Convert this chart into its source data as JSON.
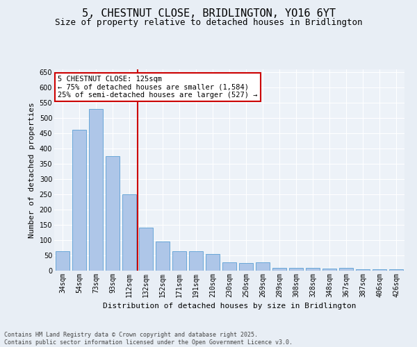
{
  "title": "5, CHESTNUT CLOSE, BRIDLINGTON, YO16 6YT",
  "subtitle": "Size of property relative to detached houses in Bridlington",
  "xlabel": "Distribution of detached houses by size in Bridlington",
  "ylabel": "Number of detached properties",
  "categories": [
    "34sqm",
    "54sqm",
    "73sqm",
    "93sqm",
    "112sqm",
    "132sqm",
    "152sqm",
    "171sqm",
    "191sqm",
    "210sqm",
    "230sqm",
    "250sqm",
    "269sqm",
    "289sqm",
    "308sqm",
    "328sqm",
    "348sqm",
    "367sqm",
    "387sqm",
    "406sqm",
    "426sqm"
  ],
  "values": [
    63,
    463,
    530,
    375,
    250,
    142,
    95,
    63,
    63,
    55,
    28,
    25,
    28,
    10,
    8,
    10,
    6,
    8,
    5,
    5,
    4
  ],
  "bar_color": "#aec6e8",
  "bar_edge_color": "#5a9fd4",
  "vline_x_index": 4,
  "vline_color": "#cc0000",
  "annotation_text": "5 CHESTNUT CLOSE: 125sqm\n← 75% of detached houses are smaller (1,584)\n25% of semi-detached houses are larger (527) →",
  "annotation_box_color": "#ffffff",
  "annotation_box_edge": "#cc0000",
  "ylim": [
    0,
    660
  ],
  "yticks": [
    0,
    50,
    100,
    150,
    200,
    250,
    300,
    350,
    400,
    450,
    500,
    550,
    600,
    650
  ],
  "bg_color": "#e8eef5",
  "plot_bg_color": "#edf2f8",
  "footer_text": "Contains HM Land Registry data © Crown copyright and database right 2025.\nContains public sector information licensed under the Open Government Licence v3.0.",
  "title_fontsize": 11,
  "subtitle_fontsize": 9,
  "xlabel_fontsize": 8,
  "ylabel_fontsize": 8,
  "tick_fontsize": 7,
  "footer_fontsize": 6,
  "annotation_fontsize": 7.5
}
